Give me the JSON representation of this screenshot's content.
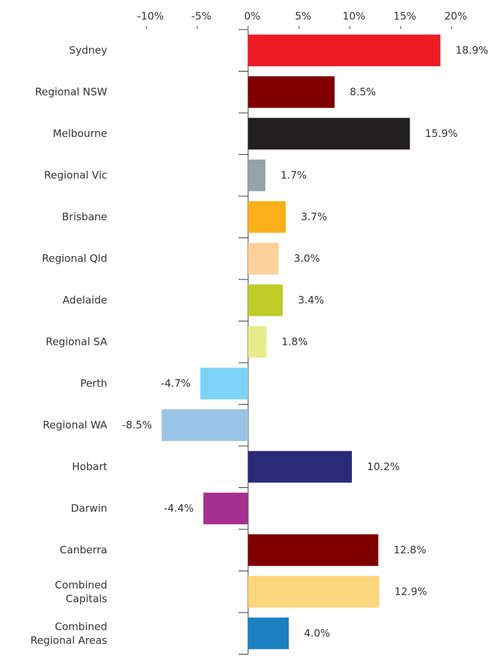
{
  "chart_data": {
    "type": "bar",
    "orientation": "horizontal",
    "categories": [
      "Sydney",
      "Regional NSW",
      "Melbourne",
      "Regional Vic",
      "Brisbane",
      "Regional Qld",
      "Adelaide",
      "Regional SA",
      "Perth",
      "Regional WA",
      "Hobart",
      "Darwin",
      "Canberra",
      "Combined\nCapitals",
      "Combined\nRegional Areas"
    ],
    "values": [
      18.9,
      8.5,
      15.9,
      1.7,
      3.7,
      3.0,
      3.4,
      1.8,
      -4.7,
      -8.5,
      10.2,
      -4.4,
      12.8,
      12.9,
      4.0
    ],
    "value_labels": [
      "18.9%",
      "8.5%",
      "15.9%",
      "1.7%",
      "3.7%",
      "3.0%",
      "3.4%",
      "1.8%",
      "-4.7%",
      "-8.5%",
      "10.2%",
      "-4.4%",
      "12.8%",
      "12.9%",
      "4.0%"
    ],
    "colors": [
      "#ed1c24",
      "#800000",
      "#231f20",
      "#95a3ab",
      "#fbb01a",
      "#fdd19a",
      "#bfcb27",
      "#e8eb8a",
      "#7dd3f7",
      "#9bc3e5",
      "#2b2a7a",
      "#a4308f",
      "#800000",
      "#fed57f",
      "#1b80bf"
    ],
    "xlim": [
      -10,
      20
    ],
    "xticks": [
      {
        "value": -10,
        "label": "-10%"
      },
      {
        "value": -5,
        "label": "-5%"
      },
      {
        "value": 0,
        "label": "0%"
      },
      {
        "value": 5,
        "label": "5%"
      },
      {
        "value": 10,
        "label": "10%"
      },
      {
        "value": 15,
        "label": "15%"
      },
      {
        "value": 20,
        "label": "20%"
      }
    ],
    "grid": false
  }
}
